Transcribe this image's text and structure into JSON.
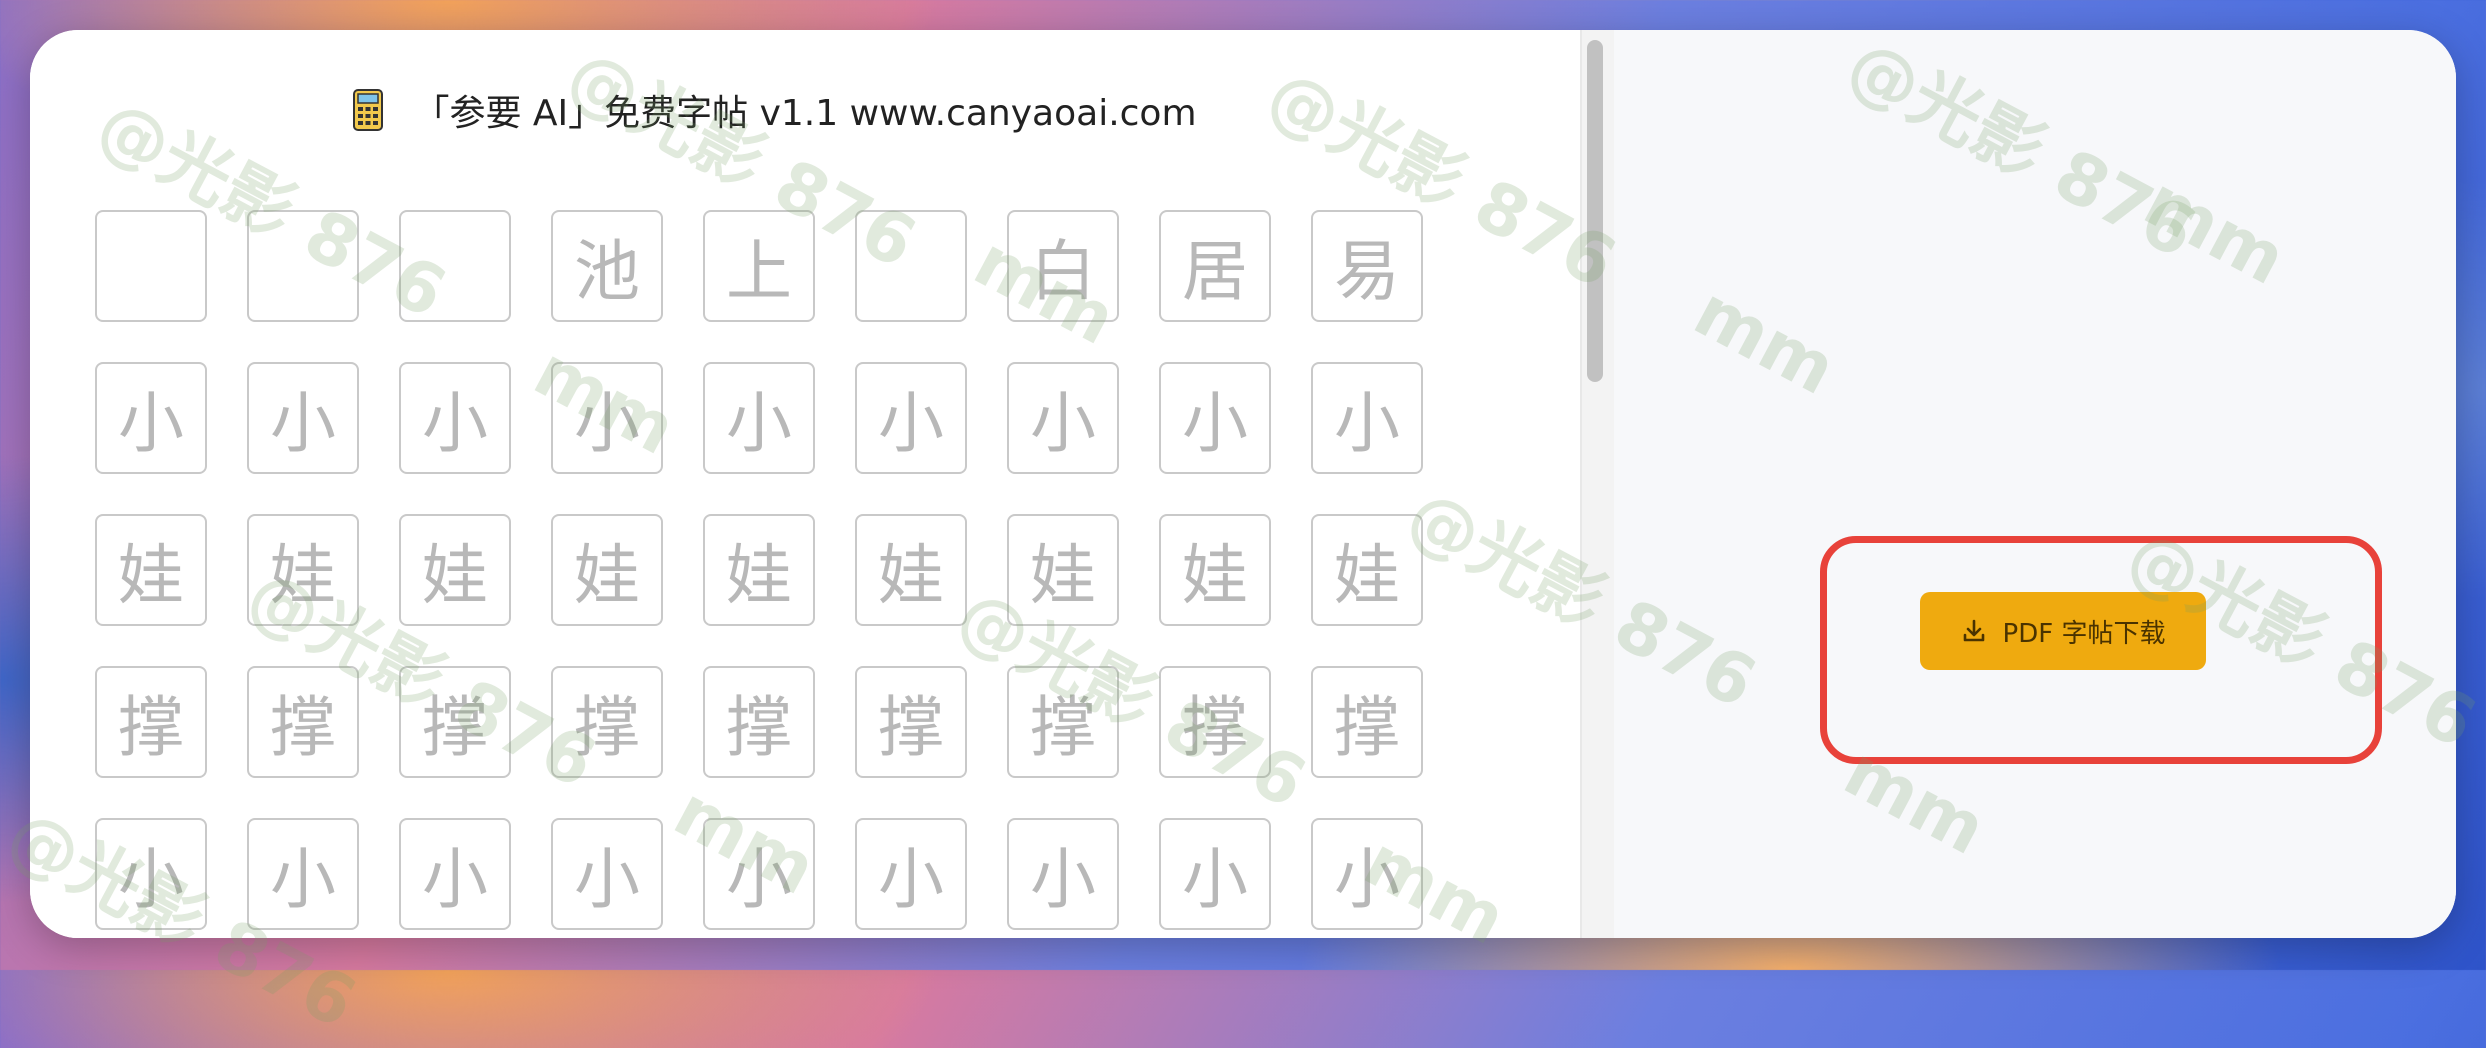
{
  "app": {
    "title": "「参要 AI」免费字帖 v1.1 www.canyaoai.com",
    "icon": "calculator-icon"
  },
  "worksheet": {
    "rows": [
      [
        "",
        "",
        "",
        "池",
        "上",
        "",
        "白",
        "居",
        "易"
      ],
      [
        "小",
        "小",
        "小",
        "小",
        "小",
        "小",
        "小",
        "小",
        "小"
      ],
      [
        "娃",
        "娃",
        "娃",
        "娃",
        "娃",
        "娃",
        "娃",
        "娃",
        "娃"
      ],
      [
        "撑",
        "撑",
        "撑",
        "撑",
        "撑",
        "撑",
        "撑",
        "撑",
        "撑"
      ],
      [
        "小",
        "小",
        "小",
        "小",
        "小",
        "小",
        "小",
        "小",
        "小"
      ]
    ]
  },
  "actions": {
    "pdf_download_label": "PDF 字帖下载",
    "pdf_download_icon": "download-icon",
    "button_color": "#efaa0f",
    "highlight_color": "#e8423a"
  },
  "watermark": {
    "line1": "@光影 876",
    "line2": "mm"
  }
}
